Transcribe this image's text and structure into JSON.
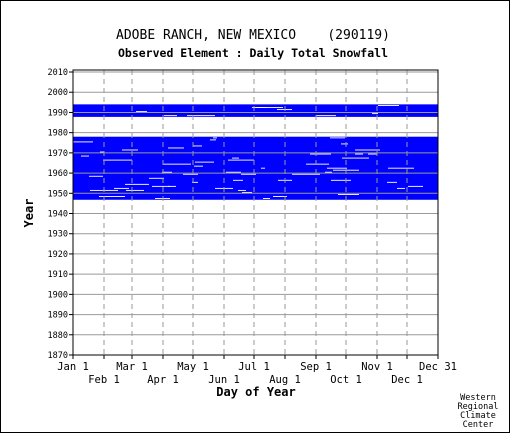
{
  "chart_data": {
    "type": "heatmap",
    "title": "ADOBE RANCH, NEW MEXICO    (290119)",
    "subtitle": "Observed Element : Daily Total Snowfall",
    "xlabel": "Day of Year",
    "ylabel": "Year",
    "credit": [
      "Western",
      "Regional",
      "Climate",
      "Center"
    ],
    "ylim": [
      1870,
      2011
    ],
    "y_ticks": [
      1870,
      1880,
      1890,
      1900,
      1910,
      1920,
      1930,
      1940,
      1950,
      1960,
      1970,
      1980,
      1990,
      2000,
      2010
    ],
    "x_ticks_upper": [
      "Jan 1",
      "Mar 1",
      "May 1",
      "Jul 1",
      "Sep 1",
      "Nov 1",
      "Dec 31"
    ],
    "x_ticks_lower": [
      "Feb 1",
      "Apr 1",
      "Jun 1",
      "Aug 1",
      "Oct 1",
      "Dec 1"
    ],
    "month_start_days": [
      1,
      32,
      60,
      91,
      121,
      152,
      182,
      213,
      244,
      274,
      305,
      335,
      366
    ],
    "data_color": "#0000ff",
    "grid": true,
    "data_year_ranges": [
      {
        "start_year": 1947,
        "end_year": 1977,
        "coverage": "observed"
      },
      {
        "start_year": 1988,
        "end_year": 1993,
        "coverage": "observed"
      }
    ]
  }
}
